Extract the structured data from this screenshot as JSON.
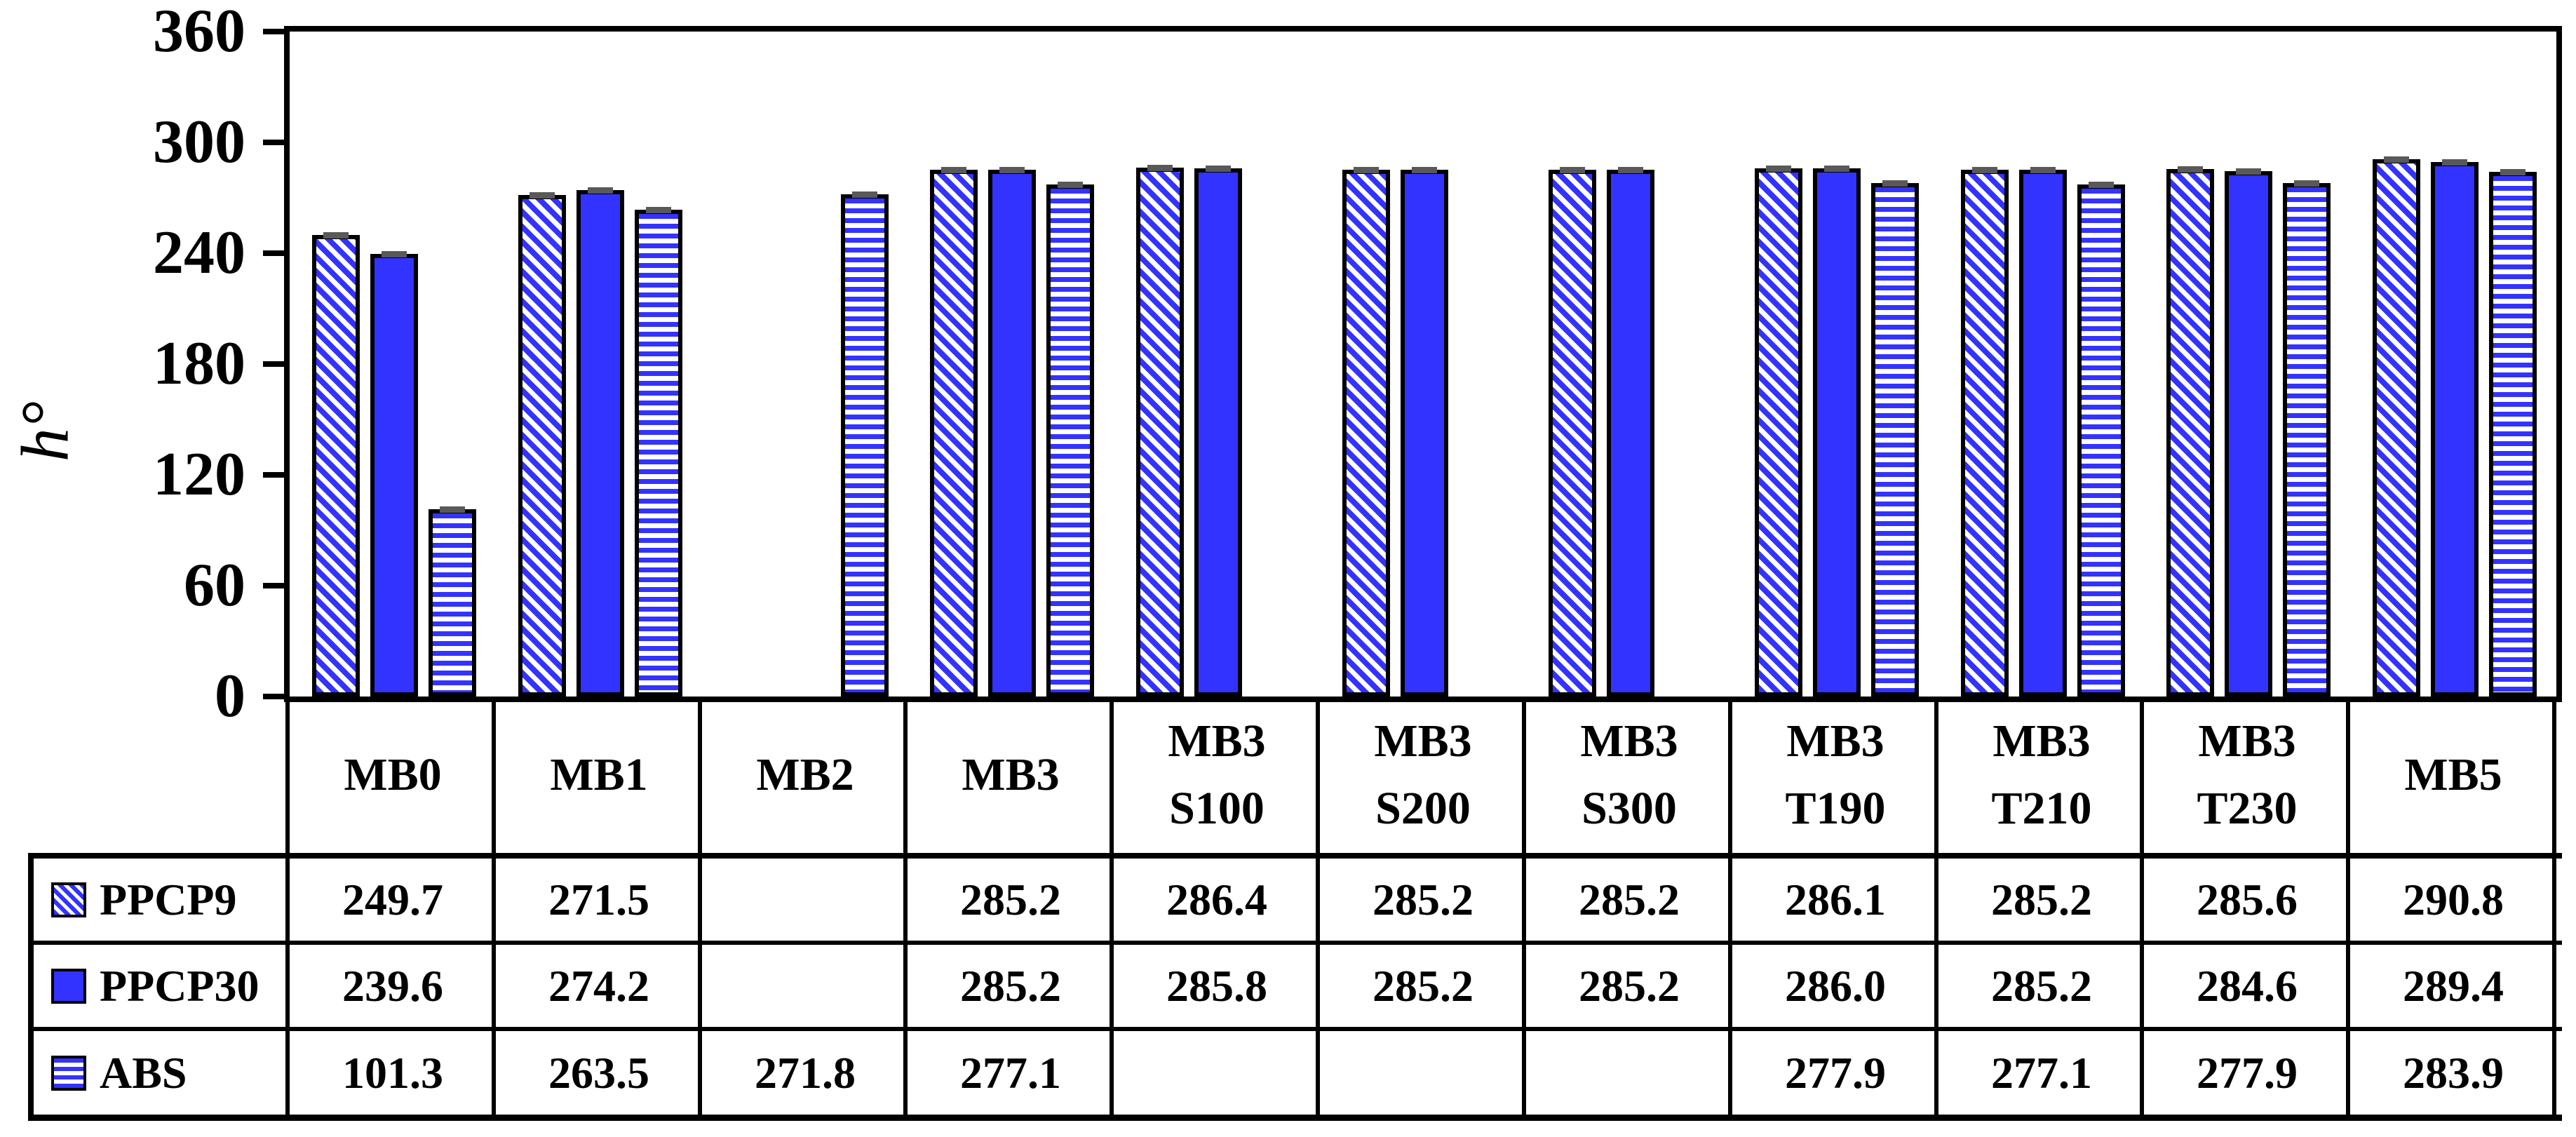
{
  "chart_data": {
    "type": "bar",
    "title": "",
    "ylabel": "h°",
    "ylim": [
      0,
      360
    ],
    "ytick_step": 60,
    "yticks": [
      0,
      60,
      120,
      180,
      240,
      300,
      360
    ],
    "grid": false,
    "error_caps": true,
    "legend_position": "table-left",
    "categories": [
      {
        "line1": "MB0"
      },
      {
        "line1": "MB1"
      },
      {
        "line1": "MB2"
      },
      {
        "line1": "MB3"
      },
      {
        "line1": "MB3",
        "line2": "S100"
      },
      {
        "line1": "MB3",
        "line2": "S200"
      },
      {
        "line1": "MB3",
        "line2": "S300"
      },
      {
        "line1": "MB3",
        "line2": "T190"
      },
      {
        "line1": "MB3",
        "line2": "T210"
      },
      {
        "line1": "MB3",
        "line2": "T230"
      },
      {
        "line1": "MB5"
      }
    ],
    "series": [
      {
        "name": "PPCP9",
        "pattern": "diagonal-hatch",
        "values": [
          249.7,
          271.5,
          null,
          285.2,
          286.4,
          285.2,
          285.2,
          286.1,
          285.2,
          285.6,
          290.8
        ]
      },
      {
        "name": "PPCP30",
        "pattern": "solid",
        "values": [
          239.6,
          274.2,
          null,
          285.2,
          285.8,
          285.2,
          285.2,
          286.0,
          285.2,
          284.6,
          289.4
        ]
      },
      {
        "name": "ABS",
        "pattern": "horizontal-stripes",
        "values": [
          101.3,
          263.5,
          271.8,
          277.1,
          null,
          null,
          null,
          277.9,
          277.1,
          277.9,
          283.9
        ]
      }
    ],
    "colors": {
      "bar_blue": "#3333FF",
      "pattern_background": "#FFFFFF",
      "error_cap_gray": "#595959",
      "line_black": "#000000"
    }
  },
  "table": {
    "columns": [
      "MB0",
      "MB1",
      "MB2",
      "MB3",
      "MB3 S100",
      "MB3 S200",
      "MB3 S300",
      "MB3 T190",
      "MB3 T210",
      "MB3 T230",
      "MB5"
    ],
    "rows": [
      {
        "label": "PPCP9",
        "values": [
          "249.7",
          "271.5",
          "",
          "285.2",
          "286.4",
          "285.2",
          "285.2",
          "286.1",
          "285.2",
          "285.6",
          "290.8"
        ]
      },
      {
        "label": "PPCP30",
        "values": [
          "239.6",
          "274.2",
          "",
          "285.2",
          "285.8",
          "285.2",
          "285.2",
          "286.0",
          "285.2",
          "284.6",
          "289.4"
        ]
      },
      {
        "label": "ABS",
        "values": [
          "101.3",
          "263.5",
          "271.8",
          "277.1",
          "",
          "",
          "",
          "277.9",
          "277.1",
          "277.9",
          "283.9"
        ]
      }
    ]
  }
}
